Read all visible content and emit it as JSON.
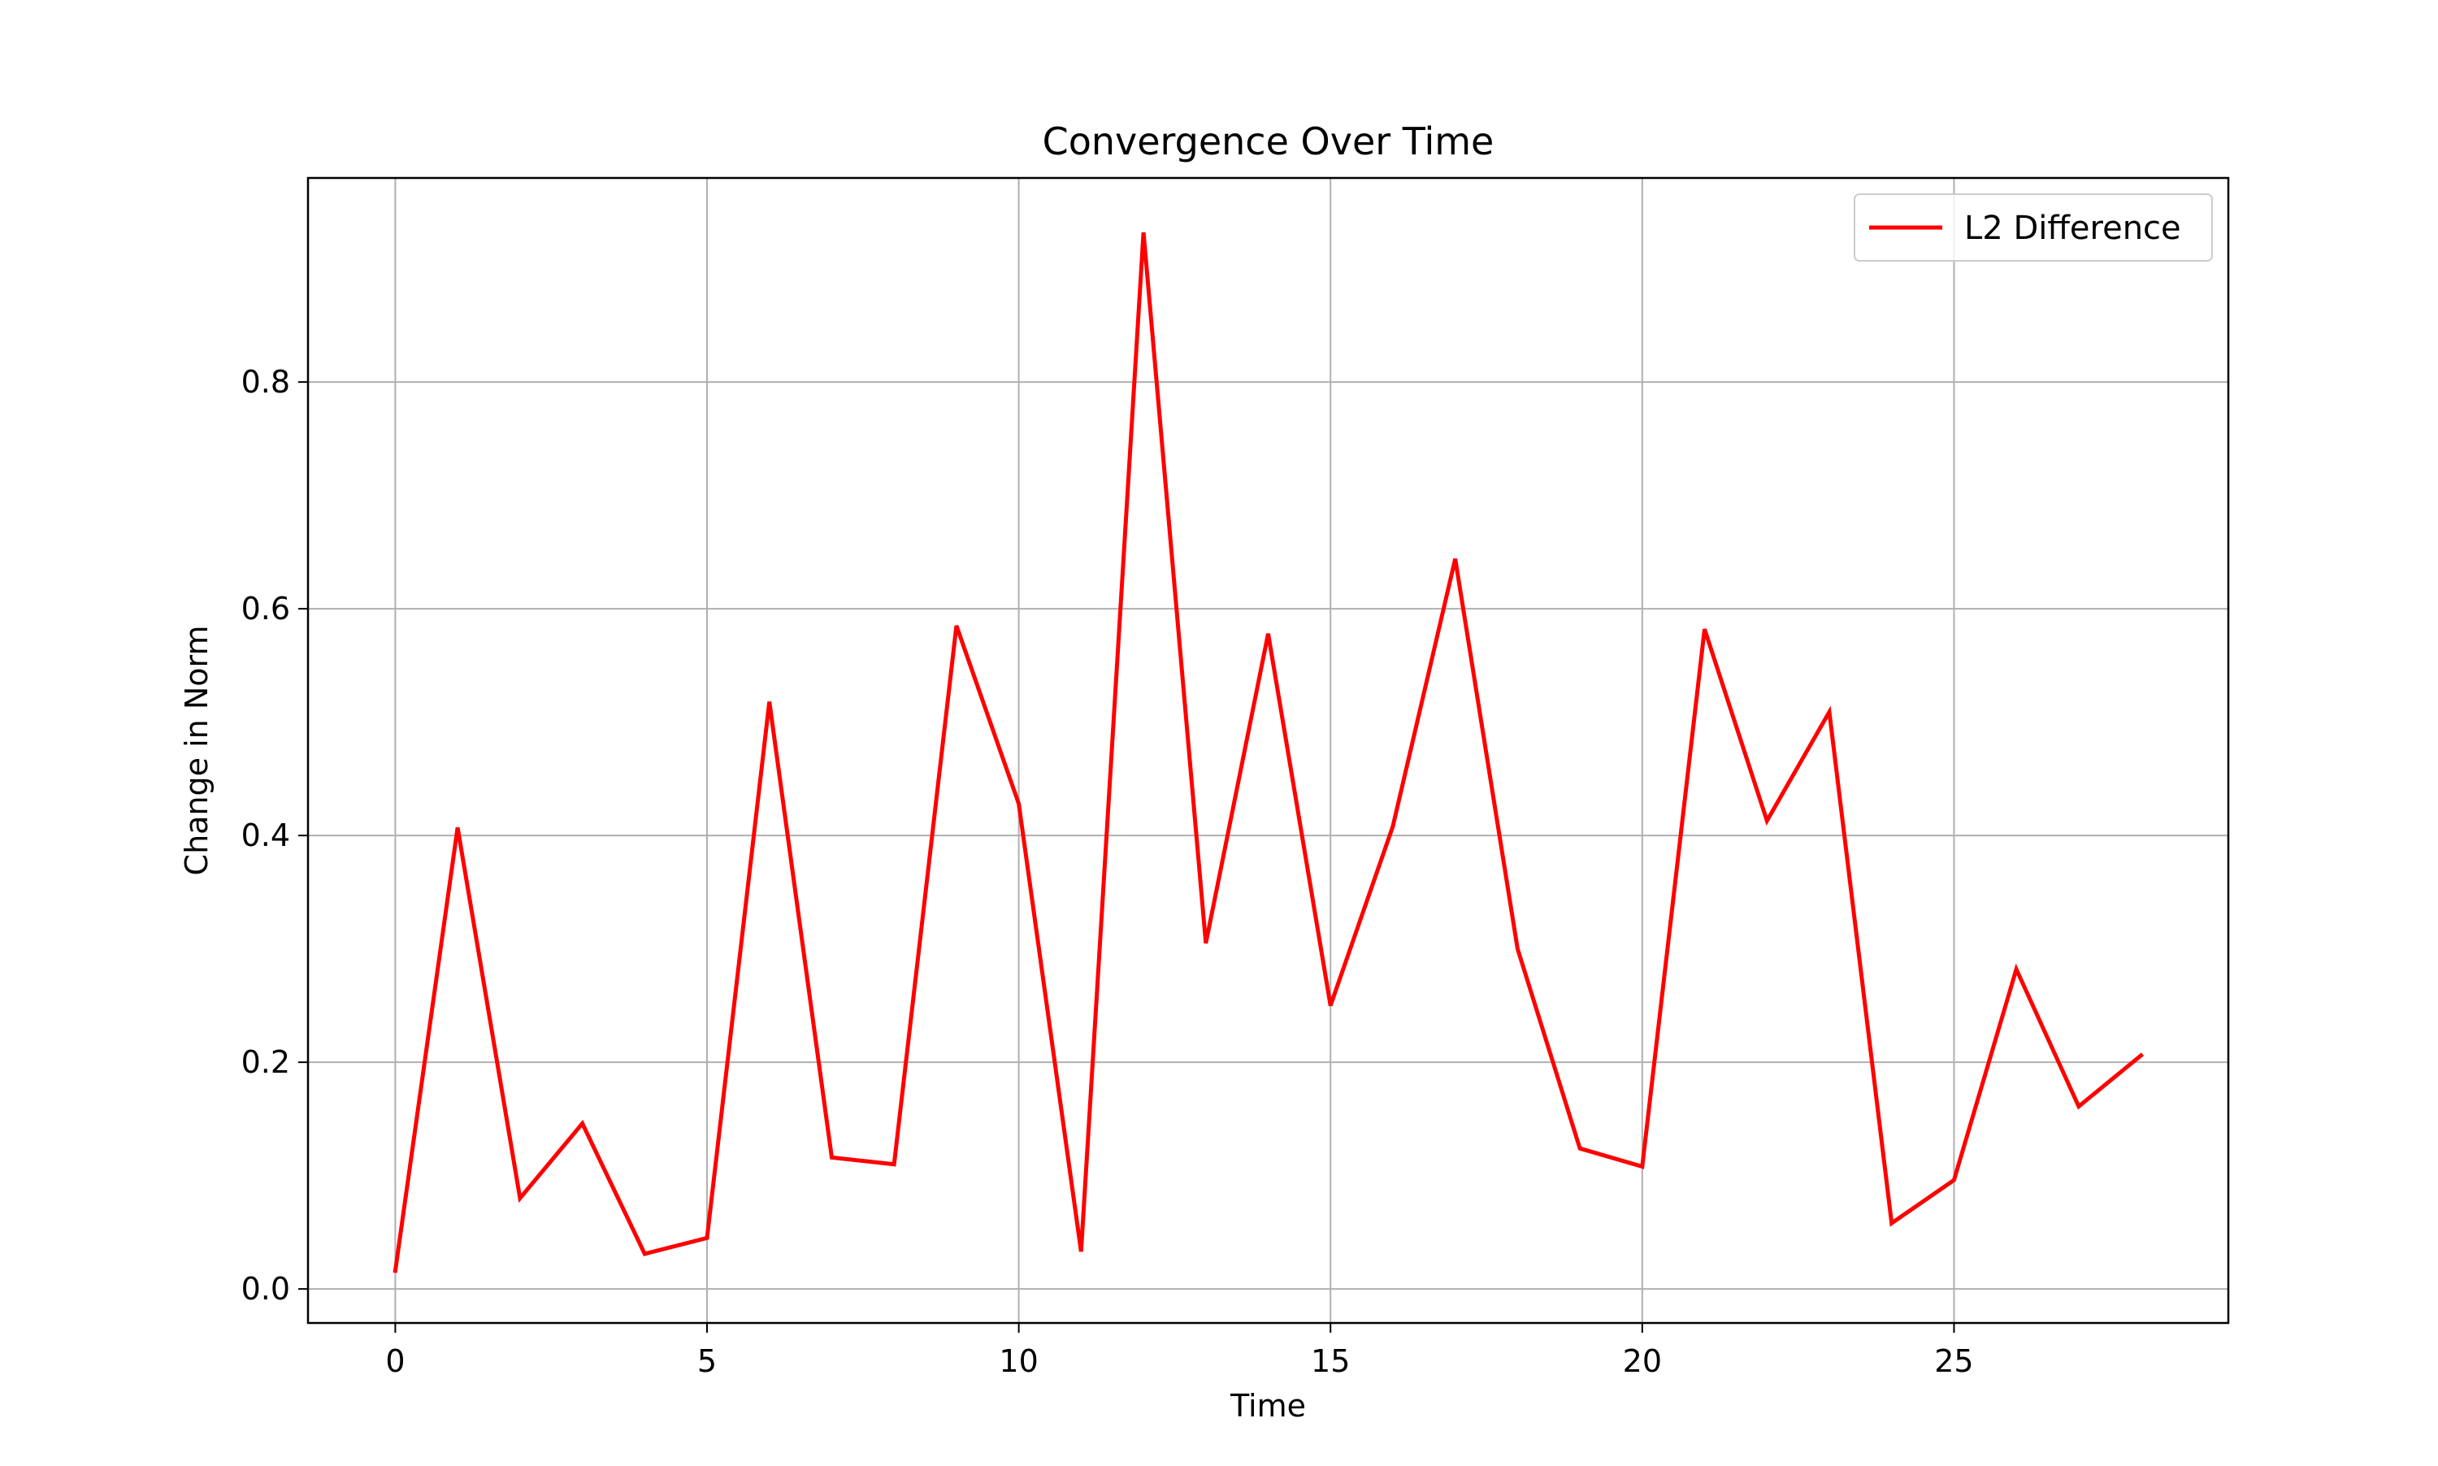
{
  "chart_data": {
    "type": "line",
    "title": "Convergence Over Time",
    "xlabel": "Time",
    "ylabel": "Change in Norm",
    "xlim": [
      -1.4,
      29.4
    ],
    "ylim": [
      -0.03,
      0.98
    ],
    "xticks": [
      0,
      5,
      10,
      15,
      20,
      25
    ],
    "xtick_labels": [
      "0",
      "5",
      "10",
      "15",
      "20",
      "25"
    ],
    "yticks": [
      0.0,
      0.2,
      0.4,
      0.6,
      0.8
    ],
    "ytick_labels": [
      "0.0",
      "0.2",
      "0.4",
      "0.6",
      "0.8"
    ],
    "grid": true,
    "legend_position": "top-right",
    "series": [
      {
        "name": "L2 Difference",
        "color": "#ff0000",
        "x": [
          0,
          1,
          2,
          3,
          4,
          5,
          6,
          7,
          8,
          9,
          10,
          11,
          12,
          13,
          14,
          15,
          16,
          17,
          18,
          19,
          20,
          21,
          22,
          23,
          24,
          25,
          26,
          27,
          28
        ],
        "y": [
          0.016,
          0.407,
          0.08,
          0.146,
          0.031,
          0.045,
          0.518,
          0.116,
          0.11,
          0.585,
          0.428,
          0.033,
          0.932,
          0.305,
          0.578,
          0.25,
          0.408,
          0.644,
          0.3,
          0.124,
          0.108,
          0.582,
          0.413,
          0.509,
          0.058,
          0.096,
          0.282,
          0.161,
          0.206
        ]
      }
    ]
  }
}
